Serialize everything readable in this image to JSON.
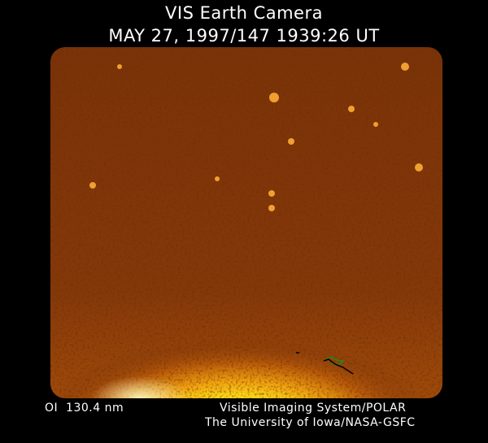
{
  "header": {
    "title": "VIS Earth Camera",
    "timestamp": "MAY 27, 1997/147 1939:26 UT"
  },
  "footer": {
    "wavelength": "OI  130.4 nm",
    "credit_line1": "Visible Imaging System/POLAR",
    "credit_line2": "The University of Iowa/NASA-GSFC"
  },
  "colors": {
    "background": "#6b2a06",
    "limb_glow": "#ffe21a",
    "overlay_outline": "#000000",
    "overlay_green": "#1f8a1f"
  }
}
